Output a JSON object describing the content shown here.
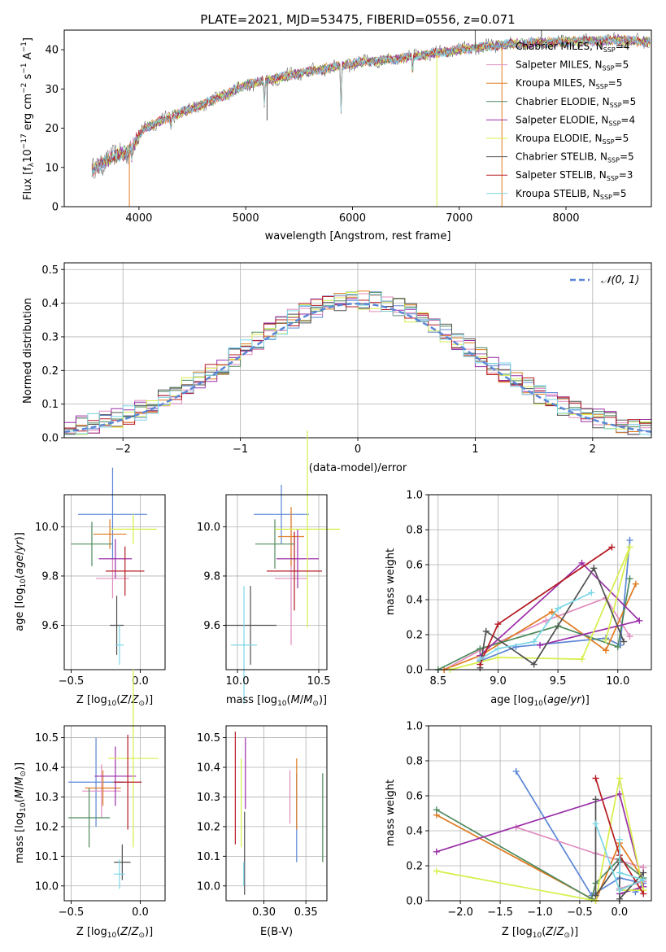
{
  "figure_title": "PLATE=2021, MJD=53475, FIBERID=0556, z=0.071",
  "colors": {
    "c0": "#5b86d6",
    "c1": "#e08cbf",
    "c2": "#e07b21",
    "c3": "#4e8a5e",
    "c4": "#9a2ea8",
    "c5": "#d8ee4a",
    "c6": "#505050",
    "c7": "#b51a22",
    "c8": "#7bd6e6",
    "grid": "#b0b0b0"
  },
  "series_names": [
    "Chabrier MILES, N_SSP=4",
    "Salpeter MILES, N_SSP=5",
    "Kroupa MILES, N_SSP=5",
    "Chabrier ELODIE, N_SSP=5",
    "Salpeter ELODIE, N_SSP=4",
    "Kroupa ELODIE, N_SSP=5",
    "Chabrier STELIB, N_SSP=5",
    "Salpeter STELIB, N_SSP=3",
    "Kroupa STELIB, N_SSP=5"
  ],
  "chart_data": [
    {
      "id": "spectrum",
      "type": "line",
      "xlabel": "wavelength [Angstrom, rest frame]",
      "ylabel": "Flux [fλ10^-17 erg cm^-2 s^-1 A^-1]",
      "xlim": [
        3300,
        8800
      ],
      "ylim": [
        0,
        45
      ],
      "xticks": [
        4000,
        5000,
        6000,
        7000,
        8000
      ],
      "yticks": [
        0,
        10,
        20,
        30,
        40
      ],
      "grid": false,
      "legend": "top-right",
      "continuum": [
        [
          3550,
          9
        ],
        [
          3700,
          12
        ],
        [
          3900,
          14
        ],
        [
          4050,
          20
        ],
        [
          4300,
          23
        ],
        [
          4600,
          26
        ],
        [
          5000,
          31
        ],
        [
          5500,
          34
        ],
        [
          6000,
          36.5
        ],
        [
          6500,
          38
        ],
        [
          7000,
          40
        ],
        [
          7500,
          41.5
        ],
        [
          8000,
          42
        ],
        [
          8500,
          42.5
        ],
        [
          8800,
          42
        ]
      ],
      "absorption_features": [
        [
          3933,
          3
        ],
        [
          4300,
          3
        ],
        [
          5175,
          6
        ],
        [
          5893,
          12
        ],
        [
          6563,
          4
        ]
      ],
      "spikes": [
        [
          3910,
          0
        ],
        [
          5200,
          22
        ],
        [
          6790,
          0
        ],
        [
          7400,
          0
        ],
        [
          7150,
          50
        ],
        [
          7770,
          48
        ]
      ]
    },
    {
      "id": "residual_histogram",
      "type": "histogram",
      "xlabel": "(data-model)/error",
      "ylabel": "Normed distribution",
      "xlim": [
        -2.5,
        2.5
      ],
      "ylim": [
        0,
        0.52
      ],
      "xticks": [
        -2,
        -1,
        0,
        1,
        2
      ],
      "yticks": [
        0.0,
        0.1,
        0.2,
        0.3,
        0.4,
        0.5
      ],
      "grid": true,
      "legend": "top-right",
      "reference_curve": "N(0,1)",
      "bins": [
        -2.5,
        2.5,
        50
      ]
    },
    {
      "id": "age_vs_Z",
      "type": "errorbar",
      "xlabel": "Z [log10(Z/Z⊙)]",
      "ylabel": "age  [log10(age/yr)]",
      "xlim": [
        -0.55,
        0.18
      ],
      "ylim": [
        9.42,
        10.13
      ],
      "xticks": [
        -0.5,
        0.0
      ],
      "yticks": [
        9.6,
        9.8,
        10.0
      ],
      "grid": true,
      "points": [
        {
          "x": -0.2,
          "xerr": 0.25,
          "y": 10.05,
          "yerr": 0.19
        },
        {
          "x": -0.2,
          "xerr": 0.12,
          "y": 9.79,
          "yerr": 0.08
        },
        {
          "x": -0.22,
          "xerr": 0.12,
          "y": 9.97,
          "yerr": 0.06
        },
        {
          "x": -0.35,
          "xerr": 0.15,
          "y": 9.93,
          "yerr": 0.09
        },
        {
          "x": -0.18,
          "xerr": 0.12,
          "y": 9.87,
          "yerr": 0.08
        },
        {
          "x": -0.05,
          "xerr": 0.17,
          "y": 9.99,
          "yerr": 0.06
        },
        {
          "x": -0.17,
          "xerr": 0.05,
          "y": 9.6,
          "yerr": 0.12
        },
        {
          "x": -0.11,
          "xerr": 0.14,
          "y": 9.82,
          "yerr": 0.1
        },
        {
          "x": -0.15,
          "xerr": 0.03,
          "y": 9.52,
          "yerr": 0.08
        }
      ]
    },
    {
      "id": "age_vs_mass",
      "type": "errorbar",
      "xlabel": "mass [log10(M/M⊙)]",
      "ylabel": "",
      "xlim": [
        9.93,
        10.55
      ],
      "ylim": [
        9.42,
        10.13
      ],
      "xticks": [
        10.0,
        10.5
      ],
      "yticks": [
        9.6,
        9.8,
        10.0
      ],
      "grid": true,
      "points": [
        {
          "x": 10.27,
          "xerr": 0.17,
          "y": 10.05,
          "yerr": 0.12
        },
        {
          "x": 10.33,
          "xerr": 0.1,
          "y": 9.79,
          "yerr": 0.27
        },
        {
          "x": 10.33,
          "xerr": 0.08,
          "y": 9.96,
          "yerr": 0.12
        },
        {
          "x": 10.23,
          "xerr": 0.12,
          "y": 9.93,
          "yerr": 0.1
        },
        {
          "x": 10.37,
          "xerr": 0.13,
          "y": 9.87,
          "yerr": 0.12
        },
        {
          "x": 10.43,
          "xerr": 0.2,
          "y": 9.99,
          "yerr": 0.4
        },
        {
          "x": 10.08,
          "xerr": 0.16,
          "y": 9.6,
          "yerr": 0.16
        },
        {
          "x": 10.35,
          "xerr": 0.17,
          "y": 9.82,
          "yerr": 0.16
        },
        {
          "x": 10.04,
          "xerr": 0.08,
          "y": 9.52,
          "yerr": 0.24
        }
      ]
    },
    {
      "id": "massweight_vs_age",
      "type": "line",
      "xlabel": "age  [log10(age/yr)]",
      "ylabel": "mass weight",
      "xlim": [
        8.42,
        10.28
      ],
      "ylim": [
        0,
        1.0
      ],
      "xticks": [
        8.5,
        9.0,
        9.5,
        10.0
      ],
      "yticks": [
        0.0,
        0.2,
        0.4,
        0.6,
        0.8,
        1.0
      ],
      "grid": true,
      "lines": [
        [
          [
            8.85,
            0.05
          ],
          [
            9.15,
            0.13
          ],
          [
            9.9,
            0.18
          ],
          [
            10.02,
            0.14
          ],
          [
            10.1,
            0.74
          ]
        ],
        [
          [
            8.55,
            0.0
          ],
          [
            8.85,
            0.11
          ],
          [
            9.4,
            0.28
          ],
          [
            9.9,
            0.41
          ],
          [
            10.1,
            0.19
          ]
        ],
        [
          [
            8.55,
            0.0
          ],
          [
            8.85,
            0.08
          ],
          [
            9.45,
            0.33
          ],
          [
            9.9,
            0.11
          ],
          [
            10.15,
            0.49
          ]
        ],
        [
          [
            8.5,
            0.0
          ],
          [
            8.85,
            0.12
          ],
          [
            9.5,
            0.25
          ],
          [
            10.0,
            0.13
          ],
          [
            10.1,
            0.52
          ]
        ],
        [
          [
            8.85,
            0.08
          ],
          [
            9.7,
            0.61
          ],
          [
            10.18,
            0.28
          ],
          [
            9.35,
            0.14
          ]
        ],
        [
          [
            8.6,
            0.0
          ],
          [
            9.0,
            0.07
          ],
          [
            9.7,
            0.06
          ],
          [
            10.1,
            0.7
          ],
          [
            9.9,
            0.17
          ]
        ],
        [
          [
            8.85,
            0.01
          ],
          [
            8.9,
            0.22
          ],
          [
            9.3,
            0.03
          ],
          [
            9.8,
            0.58
          ],
          [
            10.05,
            0.16
          ]
        ],
        [
          [
            8.85,
            0.03
          ],
          [
            9.0,
            0.26
          ],
          [
            9.95,
            0.7
          ]
        ],
        [
          [
            8.85,
            0.06
          ],
          [
            9.0,
            0.12
          ],
          [
            9.3,
            0.16
          ],
          [
            9.5,
            0.35
          ],
          [
            9.78,
            0.44
          ]
        ]
      ]
    },
    {
      "id": "mass_vs_Z",
      "type": "errorbar",
      "xlabel": "Z [log10(Z/Z⊙)]",
      "ylabel": "mass [log10(M/M⊙)]",
      "xlim": [
        -0.55,
        0.18
      ],
      "ylim": [
        9.95,
        10.54
      ],
      "xticks": [
        -0.5,
        0.0
      ],
      "yticks": [
        10.0,
        10.1,
        10.2,
        10.3,
        10.4,
        10.5
      ],
      "grid": true,
      "points": [
        {
          "x": -0.32,
          "xerr": 0.2,
          "y": 10.35,
          "yerr": 0.15
        },
        {
          "x": -0.28,
          "xerr": 0.14,
          "y": 10.32,
          "yerr": 0.09
        },
        {
          "x": -0.27,
          "xerr": 0.13,
          "y": 10.33,
          "yerr": 0.06
        },
        {
          "x": -0.37,
          "xerr": 0.15,
          "y": 10.23,
          "yerr": 0.1
        },
        {
          "x": -0.18,
          "xerr": 0.15,
          "y": 10.37,
          "yerr": 0.1
        },
        {
          "x": -0.05,
          "xerr": 0.18,
          "y": 10.43,
          "yerr": 0.3
        },
        {
          "x": -0.13,
          "xerr": 0.06,
          "y": 10.08,
          "yerr": 0.06
        },
        {
          "x": -0.09,
          "xerr": 0.1,
          "y": 10.35,
          "yerr": 0.16
        },
        {
          "x": -0.15,
          "xerr": 0.04,
          "y": 10.04,
          "yerr": 0.05
        }
      ]
    },
    {
      "id": "mass_vs_EBV",
      "type": "errorbar",
      "xlabel": "E(B-V)",
      "ylabel": "",
      "xlim": [
        0.255,
        0.375
      ],
      "ylim": [
        9.95,
        10.54
      ],
      "xticks": [
        0.3,
        0.35
      ],
      "yticks": [
        10.0,
        10.1,
        10.2,
        10.3,
        10.4,
        10.5
      ],
      "grid": true,
      "points": [
        {
          "x": 0.339,
          "xerr": 0,
          "y": 10.23,
          "yerr": 0.15
        },
        {
          "x": 0.331,
          "xerr": 0,
          "y": 10.3,
          "yerr": 0.09
        },
        {
          "x": 0.339,
          "xerr": 0,
          "y": 10.31,
          "yerr": 0.12
        },
        {
          "x": 0.37,
          "xerr": 0,
          "y": 10.23,
          "yerr": 0.15
        },
        {
          "x": 0.278,
          "xerr": 0,
          "y": 10.38,
          "yerr": 0.12
        },
        {
          "x": 0.273,
          "xerr": 0,
          "y": 10.28,
          "yerr": 0.15
        },
        {
          "x": 0.277,
          "xerr": 0,
          "y": 10.11,
          "yerr": 0.14
        },
        {
          "x": 0.266,
          "xerr": 0,
          "y": 10.33,
          "yerr": 0.19
        },
        {
          "x": 0.276,
          "xerr": 0,
          "y": 10.04,
          "yerr": 0.04
        }
      ]
    },
    {
      "id": "massweight_vs_Z",
      "type": "line",
      "xlabel": "Z [log10(Z/Z⊙)]",
      "ylabel": "mass weight",
      "xlim": [
        -2.4,
        0.4
      ],
      "ylim": [
        0,
        1.0
      ],
      "xticks": [
        -2.0,
        -1.5,
        -1.0,
        -0.5,
        0.0
      ],
      "yticks": [
        0.0,
        0.2,
        0.4,
        0.6,
        0.8,
        1.0
      ],
      "grid": true,
      "lines": [
        [
          [
            -1.3,
            0.74
          ],
          [
            -0.35,
            0.03
          ],
          [
            0.0,
            0.13
          ],
          [
            0.3,
            0.1
          ],
          [
            0.2,
            0.05
          ]
        ],
        [
          [
            -1.3,
            0.42
          ],
          [
            -0.3,
            0.27
          ],
          [
            0.3,
            0.19
          ],
          [
            0.3,
            0.11
          ],
          [
            0.0,
            0.07
          ]
        ],
        [
          [
            -2.3,
            0.49
          ],
          [
            -0.3,
            0.0
          ],
          [
            0.0,
            0.33
          ],
          [
            0.3,
            0.12
          ],
          [
            0.0,
            0.06
          ]
        ],
        [
          [
            -2.3,
            0.52
          ],
          [
            -0.35,
            0.01
          ],
          [
            -0.3,
            0.1
          ],
          [
            0.0,
            0.24
          ],
          [
            0.3,
            0.13
          ]
        ],
        [
          [
            -2.3,
            0.28
          ],
          [
            0.0,
            0.61
          ],
          [
            0.3,
            0.08
          ],
          [
            0.0,
            0.04
          ]
        ],
        [
          [
            -2.3,
            0.17
          ],
          [
            -0.3,
            0.0
          ],
          [
            0.0,
            0.7
          ],
          [
            0.3,
            0.06
          ],
          [
            0.0,
            0.06
          ]
        ],
        [
          [
            -0.3,
            0.58
          ],
          [
            -0.3,
            0.03
          ],
          [
            0.0,
            0.22
          ],
          [
            0.0,
            0.01
          ],
          [
            0.3,
            0.16
          ]
        ],
        [
          [
            -0.3,
            0.7
          ],
          [
            0.0,
            0.26
          ],
          [
            0.3,
            0.04
          ]
        ],
        [
          [
            -0.3,
            0.44
          ],
          [
            0.0,
            0.06
          ],
          [
            0.3,
            0.12
          ],
          [
            0.0,
            0.16
          ],
          [
            0.0,
            0.35
          ]
        ]
      ]
    }
  ]
}
